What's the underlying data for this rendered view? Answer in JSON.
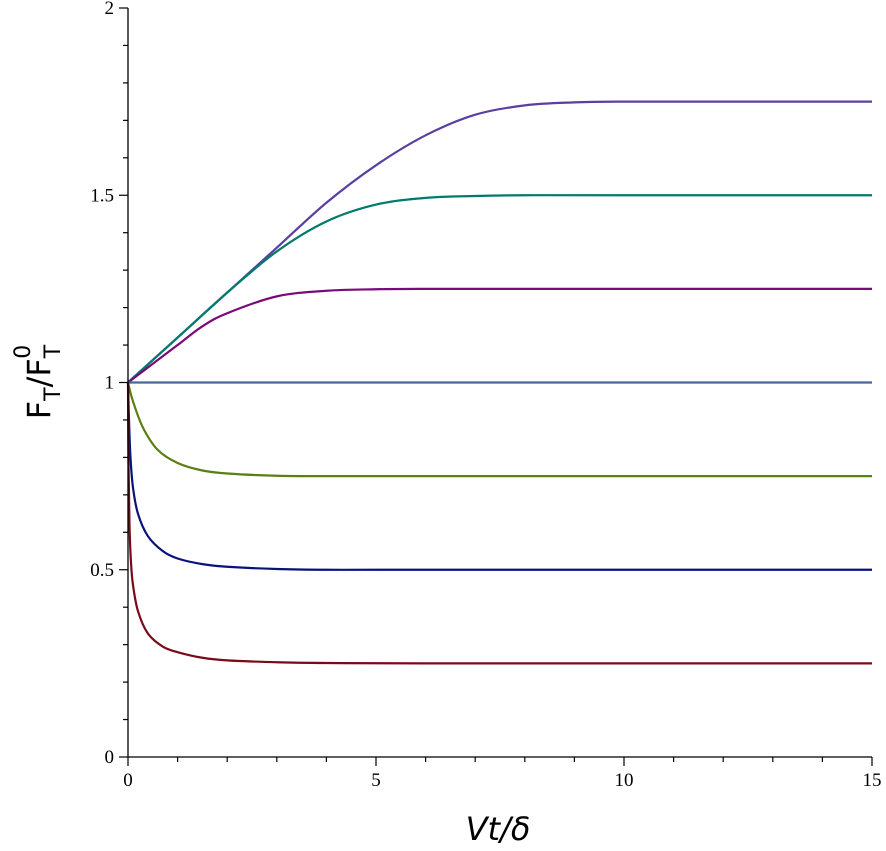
{
  "chart_data": {
    "type": "line",
    "title": "",
    "xlabel": "Vt/δ",
    "ylabel_main": "F",
    "ylabel_sub1": "T",
    "ylabel_slash": "/F",
    "ylabel_sub2": "T",
    "ylabel_sup": "0",
    "xlim": [
      0,
      15
    ],
    "ylim": [
      0,
      2
    ],
    "x_ticks": [
      0,
      5,
      10,
      15
    ],
    "x_tick_labels": [
      "0",
      "5",
      "10",
      "15"
    ],
    "y_ticks": [
      0,
      0.5,
      1,
      1.5,
      2
    ],
    "y_tick_labels": [
      "0",
      "0.5",
      "1",
      "1.5",
      "2"
    ],
    "x_minor_step": 1,
    "y_minor_step": 0.1,
    "grid": false,
    "legend": "none",
    "series": [
      {
        "color": "#5b3fa0",
        "x": [
          0,
          1,
          2,
          3,
          4,
          5,
          6,
          7,
          8,
          9,
          10,
          12,
          15
        ],
        "y": [
          1.0,
          1.12,
          1.24,
          1.36,
          1.48,
          1.58,
          1.66,
          1.715,
          1.74,
          1.748,
          1.75,
          1.75,
          1.75
        ]
      },
      {
        "color": "#007a6c",
        "x": [
          0,
          1,
          2,
          3,
          4,
          5,
          6,
          7,
          8,
          10,
          15
        ],
        "y": [
          1.0,
          1.12,
          1.24,
          1.35,
          1.43,
          1.475,
          1.493,
          1.498,
          1.5,
          1.5,
          1.5
        ]
      },
      {
        "color": "#7a0a7a",
        "x": [
          0,
          0.5,
          1,
          1.5,
          2,
          3,
          4,
          5,
          6,
          8,
          15
        ],
        "y": [
          1.0,
          1.05,
          1.1,
          1.15,
          1.185,
          1.23,
          1.245,
          1.249,
          1.25,
          1.25,
          1.25
        ]
      },
      {
        "color": "#4a6796",
        "x": [
          0,
          15
        ],
        "y": [
          1.0,
          1.0
        ]
      },
      {
        "color": "#5a7f12",
        "x": [
          0,
          0.1,
          0.3,
          0.6,
          1,
          1.5,
          2,
          3,
          4,
          6,
          15
        ],
        "y": [
          1.0,
          0.95,
          0.88,
          0.82,
          0.785,
          0.765,
          0.757,
          0.751,
          0.75,
          0.75,
          0.75
        ]
      },
      {
        "color": "#0a127a",
        "x": [
          0,
          0.02,
          0.05,
          0.1,
          0.2,
          0.4,
          0.7,
          1,
          1.5,
          2,
          3,
          4,
          6,
          15
        ],
        "y": [
          1.0,
          0.9,
          0.8,
          0.72,
          0.65,
          0.59,
          0.55,
          0.53,
          0.515,
          0.508,
          0.502,
          0.5,
          0.5,
          0.5
        ]
      },
      {
        "color": "#7a0a1a",
        "x": [
          0,
          0.01,
          0.03,
          0.06,
          0.1,
          0.2,
          0.4,
          0.7,
          1,
          1.5,
          2,
          3,
          4,
          6,
          15
        ],
        "y": [
          1.0,
          0.8,
          0.62,
          0.52,
          0.46,
          0.39,
          0.33,
          0.295,
          0.28,
          0.265,
          0.258,
          0.253,
          0.251,
          0.25,
          0.25
        ]
      }
    ]
  }
}
